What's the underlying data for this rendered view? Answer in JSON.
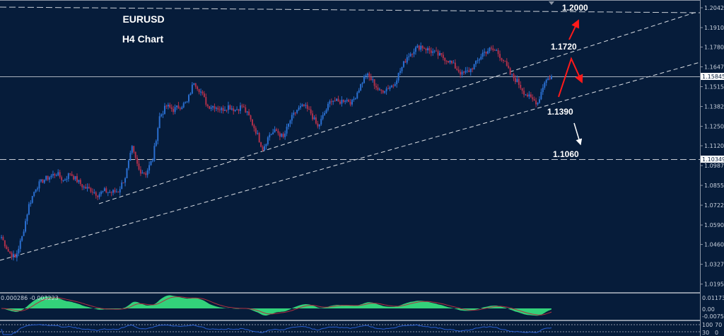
{
  "chart_data": {
    "type": "candlestick",
    "title": "EURUSD",
    "subtitle": "H4 Chart",
    "symbol": "EURUSD",
    "timeframe": "H4",
    "approx_closes": [
      1.051,
      1.0415,
      1.0368,
      1.051,
      1.0723,
      1.0841,
      1.0888,
      1.0912,
      1.0936,
      1.0888,
      1.0936,
      1.0888,
      1.0841,
      1.0827,
      1.0794,
      1.0817,
      1.0808,
      1.0817,
      1.0912,
      1.1101,
      1.0959,
      1.0936,
      1.103,
      1.1314,
      1.1385,
      1.1361,
      1.1385,
      1.1409,
      1.1551,
      1.148,
      1.1385,
      1.1385,
      1.1361,
      1.1385,
      1.1361,
      1.1385,
      1.1314,
      1.1219,
      1.1101,
      1.1196,
      1.1219,
      1.1172,
      1.129,
      1.1361,
      1.1385,
      1.1338,
      1.1243,
      1.1338,
      1.1432,
      1.1409,
      1.1432,
      1.1409,
      1.1503,
      1.1598,
      1.1551,
      1.148,
      1.1503,
      1.1527,
      1.1621,
      1.1716,
      1.1763,
      1.1787,
      1.1763,
      1.174,
      1.1716,
      1.1692,
      1.1645,
      1.1598,
      1.1621,
      1.1669,
      1.174,
      1.1763,
      1.1754,
      1.1692,
      1.1598,
      1.1551,
      1.148,
      1.1432,
      1.1409,
      1.1551,
      1.1584
    ],
    "ylim": [
      1.013,
      1.206
    ],
    "y_ticks": [
      "1.20425",
      "1.19100",
      "1.17800",
      "1.16475",
      "1.15150",
      "1.13825",
      "1.12500",
      "1.11200",
      "1.09875",
      "1.08550",
      "1.07225",
      "1.05900",
      "1.04600",
      "1.03275",
      "1.01950"
    ],
    "current_price": "1.15845",
    "marked_level": "1.10349",
    "annotations": [
      {
        "label": "1.2000",
        "price": 1.2,
        "kind": "resistance-dashed-line"
      },
      {
        "label": "1.1720",
        "price": 1.172
      },
      {
        "label": "1.1390",
        "price": 1.139
      },
      {
        "label": "1.1060",
        "price": 1.106,
        "kind": "support-dashed-line"
      }
    ],
    "trendlines": "two rising parallel dashed lines",
    "arrows": [
      {
        "color": "#ff1a1a",
        "direction": "up toward 1.2000"
      },
      {
        "color": "#ff1a1a",
        "direction": "up to 1.1720 then down"
      },
      {
        "color": "#ffffff",
        "direction": "down toward 1.1060"
      }
    ],
    "colors": {
      "background": "#061c3a",
      "bull_candle": "#2a6fd0",
      "bear_candle": "#b0304a",
      "macd_fill": "#33d17a",
      "signal_line": "#b03040",
      "rsi_line": "#2a5fd0"
    },
    "grid": false,
    "indicators": {
      "macd": {
        "values_label": "0.000286 -0.003223",
        "ticks": [
          "0.011732",
          "0.00",
          "-0.007585"
        ]
      },
      "rsi": {
        "ticks": [
          "100",
          "70",
          "30",
          "0"
        ]
      }
    }
  }
}
